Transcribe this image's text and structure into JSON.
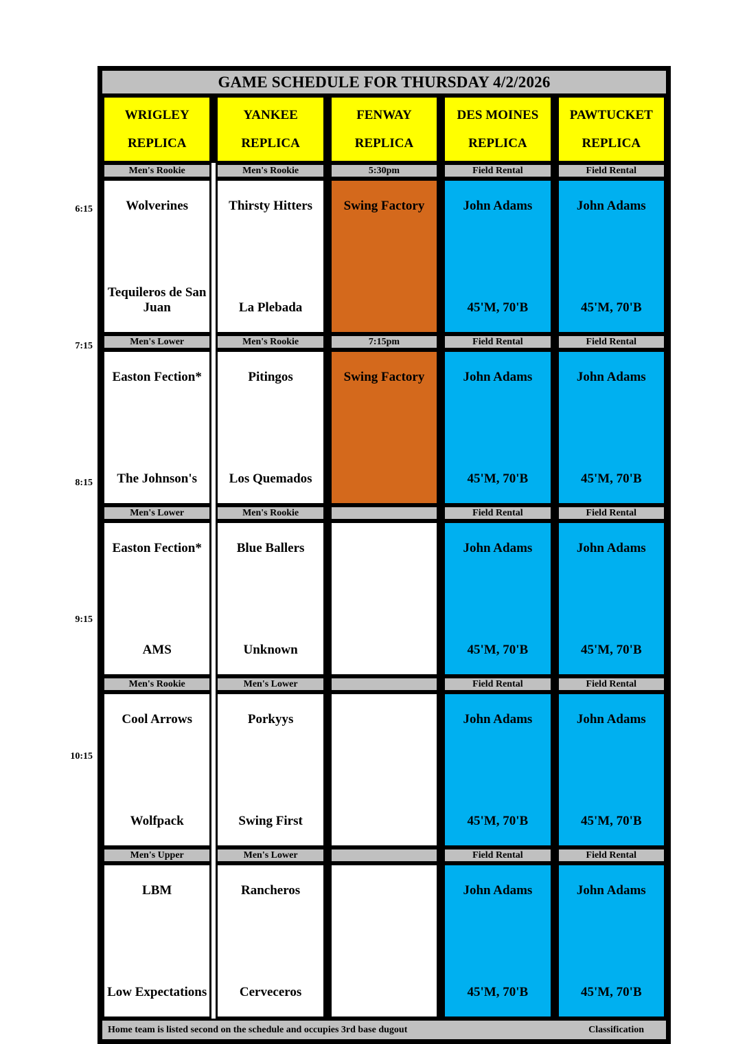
{
  "title": "GAME SCHEDULE FOR THURSDAY 4/2/2026",
  "venues": [
    {
      "line1": "WRIGLEY",
      "line2": "REPLICA"
    },
    {
      "line1": "YANKEE",
      "line2": "REPLICA"
    },
    {
      "line1": "FENWAY",
      "line2": "REPLICA"
    },
    {
      "line1": "DES MOINES",
      "line2": "REPLICA"
    },
    {
      "line1": "PAWTUCKET",
      "line2": "REPLICA"
    }
  ],
  "rows": [
    {
      "time": "6:15",
      "cells": [
        {
          "strip": "Men's Rookie",
          "bg": "white",
          "top": "Wolverines",
          "bottom": "Tequileros de San Juan"
        },
        {
          "strip": "Men's Rookie",
          "bg": "white",
          "top": "Thirsty Hitters",
          "bottom": "La Plebada"
        },
        {
          "strip": "5:30pm",
          "bg": "orange",
          "top": "Swing Factory",
          "bottom": ""
        },
        {
          "strip": "Field Rental",
          "bg": "blue",
          "top": "John Adams",
          "bottom": "45'M, 70'B"
        },
        {
          "strip": "Field Rental",
          "bg": "blue",
          "top": "John Adams",
          "bottom": "45'M, 70'B"
        }
      ]
    },
    {
      "time": "7:15",
      "cells": [
        {
          "strip": "Men's Lower",
          "bg": "white",
          "top": "Easton Fection*",
          "bottom": "The Johnson's"
        },
        {
          "strip": "Men's Rookie",
          "bg": "white",
          "top": "Pitingos",
          "bottom": "Los Quemados"
        },
        {
          "strip": "7:15pm",
          "bg": "orange",
          "top": "Swing Factory",
          "bottom": ""
        },
        {
          "strip": "Field Rental",
          "bg": "blue",
          "top": "John Adams",
          "bottom": "45'M, 70'B"
        },
        {
          "strip": "Field Rental",
          "bg": "blue",
          "top": "John Adams",
          "bottom": "45'M, 70'B"
        }
      ]
    },
    {
      "time": "8:15",
      "cells": [
        {
          "strip": "Men's Lower",
          "bg": "white",
          "top": "Easton Fection*",
          "bottom": "AMS"
        },
        {
          "strip": "Men's Rookie",
          "bg": "white",
          "top": "Blue Ballers",
          "bottom": "Unknown"
        },
        {
          "strip": "",
          "bg": "white",
          "top": "",
          "bottom": ""
        },
        {
          "strip": "Field Rental",
          "bg": "blue",
          "top": "John Adams",
          "bottom": "45'M, 70'B"
        },
        {
          "strip": "Field Rental",
          "bg": "blue",
          "top": "John Adams",
          "bottom": "45'M, 70'B"
        }
      ]
    },
    {
      "time": "9:15",
      "cells": [
        {
          "strip": "Men's Rookie",
          "bg": "white",
          "top": "Cool Arrows",
          "bottom": "Wolfpack"
        },
        {
          "strip": "Men's Lower",
          "bg": "white",
          "top": "Porkyys",
          "bottom": "Swing First"
        },
        {
          "strip": "",
          "bg": "white",
          "top": "",
          "bottom": ""
        },
        {
          "strip": "Field Rental",
          "bg": "blue",
          "top": "John Adams",
          "bottom": "45'M, 70'B"
        },
        {
          "strip": "Field Rental",
          "bg": "blue",
          "top": "John Adams",
          "bottom": "45'M, 70'B"
        }
      ]
    },
    {
      "time": "10:15",
      "cells": [
        {
          "strip": "Men's Upper",
          "bg": "white",
          "top": "LBM",
          "bottom": "Low Expectations"
        },
        {
          "strip": "Men's Lower",
          "bg": "white",
          "top": "Rancheros",
          "bottom": "Cerveceros"
        },
        {
          "strip": "",
          "bg": "white",
          "top": "",
          "bottom": ""
        },
        {
          "strip": "Field Rental",
          "bg": "blue",
          "top": "John Adams",
          "bottom": "45'M, 70'B"
        },
        {
          "strip": "Field Rental",
          "bg": "blue",
          "top": "John Adams",
          "bottom": "45'M, 70'B"
        }
      ]
    }
  ],
  "footer": {
    "left": "Home team is listed second on the schedule and occupies 3rd base dugout",
    "right": "Classification"
  },
  "colors": {
    "header_yellow": "#FFFF00",
    "strip_gray": "#C0C0C0",
    "rental_blue": "#00B0F0",
    "factory_orange": "#D4691C",
    "border_black": "#000000"
  }
}
